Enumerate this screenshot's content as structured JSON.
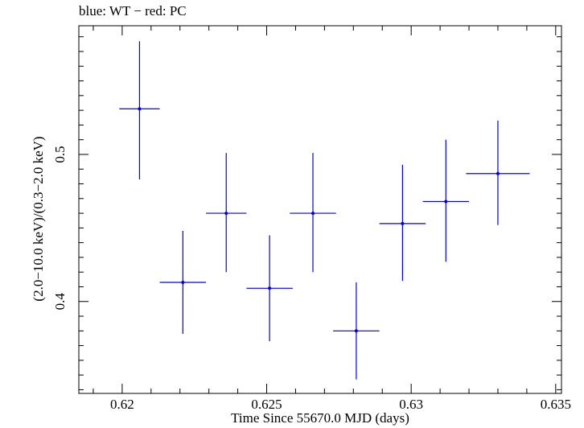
{
  "chart_data": {
    "type": "scatter",
    "title": "blue: WT − red: PC",
    "xlabel": "Time Since 55670.0 MJD (days)",
    "ylabel": "(2.0−10.0 keV)/(0.3−2.0 keV)",
    "xlim": [
      0.6185,
      0.6352
    ],
    "ylim": [
      0.3375,
      0.5875
    ],
    "x_ticks": [
      0.62,
      0.625,
      0.63,
      0.635
    ],
    "x_tick_labels": [
      "0.62",
      "0.625",
      "0.63",
      "0.635"
    ],
    "y_ticks": [
      0.4,
      0.5
    ],
    "y_tick_labels": [
      "0.4",
      "0.5"
    ],
    "grid": false,
    "series": [
      {
        "color": "#0000e0",
        "points": [
          {
            "x": 0.6206,
            "y": 0.531,
            "xerr": 0.0007,
            "yerr_low": 0.048,
            "yerr_high": 0.046
          },
          {
            "x": 0.6221,
            "y": 0.413,
            "xerr": 0.0008,
            "yerr_low": 0.035,
            "yerr_high": 0.035
          },
          {
            "x": 0.6236,
            "y": 0.46,
            "xerr": 0.0007,
            "yerr_low": 0.04,
            "yerr_high": 0.041
          },
          {
            "x": 0.6251,
            "y": 0.409,
            "xerr": 0.0008,
            "yerr_low": 0.036,
            "yerr_high": 0.036
          },
          {
            "x": 0.6266,
            "y": 0.46,
            "xerr": 0.0008,
            "yerr_low": 0.04,
            "yerr_high": 0.041
          },
          {
            "x": 0.6281,
            "y": 0.38,
            "xerr": 0.0008,
            "yerr_low": 0.033,
            "yerr_high": 0.033
          },
          {
            "x": 0.6297,
            "y": 0.453,
            "xerr": 0.0008,
            "yerr_low": 0.039,
            "yerr_high": 0.04
          },
          {
            "x": 0.6312,
            "y": 0.468,
            "xerr": 0.0008,
            "yerr_low": 0.041,
            "yerr_high": 0.042
          },
          {
            "x": 0.633,
            "y": 0.487,
            "xerr": 0.0011,
            "yerr_low": 0.035,
            "yerr_high": 0.036
          }
        ]
      }
    ]
  }
}
